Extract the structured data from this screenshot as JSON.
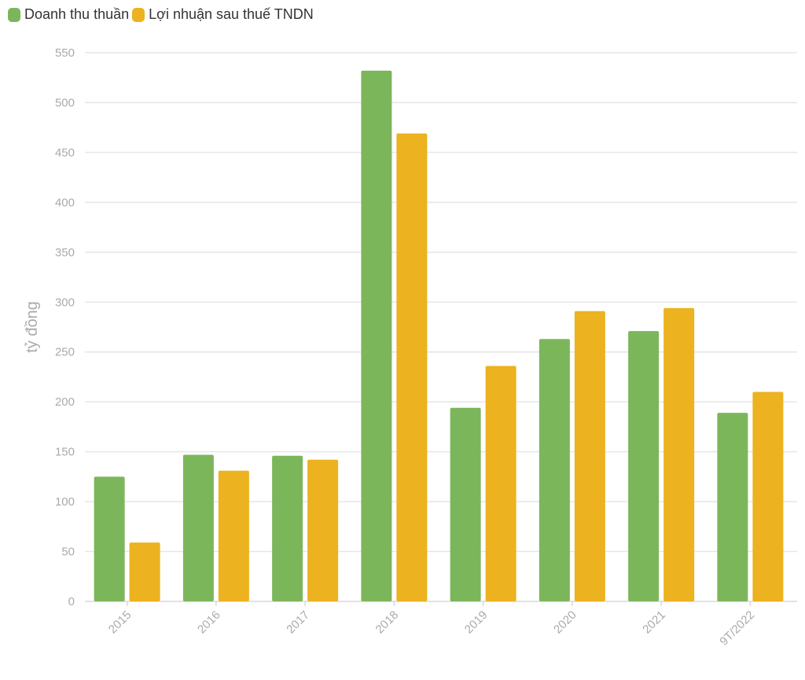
{
  "legend": {
    "items": [
      {
        "label": "Doanh thu thuần",
        "color": "#7cb65a"
      },
      {
        "label": "Lợi nhuận sau thuế TNDN",
        "color": "#ecb21f"
      }
    ]
  },
  "chart_data": {
    "type": "bar",
    "categories": [
      "2015",
      "2016",
      "2017",
      "2018",
      "2019",
      "2020",
      "2021",
      "9T/2022"
    ],
    "series": [
      {
        "name": "Doanh thu thuần",
        "color": "#7cb65a",
        "values": [
          125,
          147,
          146,
          532,
          194,
          263,
          271,
          189
        ]
      },
      {
        "name": "Lợi nhuận sau thuế TNDN",
        "color": "#ecb21f",
        "values": [
          59,
          131,
          142,
          469,
          236,
          291,
          294,
          210
        ]
      }
    ],
    "ylabel": "tỷ đồng",
    "xlabel": "",
    "ylim": [
      0,
      550
    ],
    "yticks": [
      0,
      50,
      100,
      150,
      200,
      250,
      300,
      350,
      400,
      450,
      500,
      550
    ],
    "grid": true,
    "legend_position": "top-left"
  }
}
